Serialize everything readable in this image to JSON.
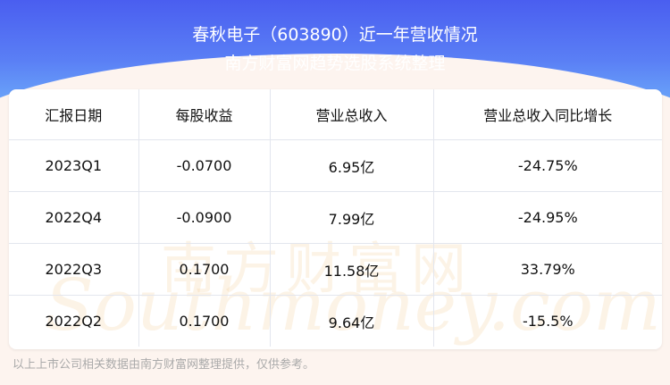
{
  "header": {
    "title": "春秋电子（603890）近一年营收情况",
    "subtitle": "南方财富网趋势选股系统整理"
  },
  "table": {
    "columns": [
      "汇报日期",
      "每股收益",
      "营业总收入",
      "营业总收入同比增长"
    ],
    "rows": [
      [
        "2023Q1",
        "-0.0700",
        "6.95亿",
        "-24.75%"
      ],
      [
        "2022Q4",
        "-0.0900",
        "7.99亿",
        "-24.95%"
      ],
      [
        "2022Q3",
        "0.1700",
        "11.58亿",
        "33.79%"
      ],
      [
        "2022Q2",
        "0.1700",
        "9.64亿",
        "-15.5%"
      ]
    ]
  },
  "watermark": {
    "cn": "南方财富网",
    "en": "Southmoney.com"
  },
  "footer": "以上上市公司相关数据由南方财富网整理提供，仅供参考。"
}
